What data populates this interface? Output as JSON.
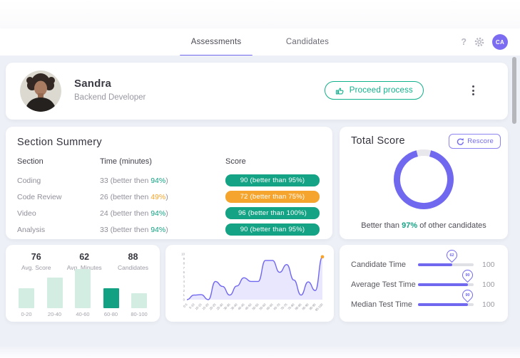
{
  "colors": {
    "accent_purple": "#7168f0",
    "green": "#14a385",
    "orange": "#f5a52e",
    "teal_button": "#10b08c"
  },
  "nav": {
    "tabs": [
      {
        "label": "Assessments"
      },
      {
        "label": "Candidates"
      }
    ],
    "help_glyph": "?",
    "settings_icon": "gear-icon",
    "avatar_initials": "CA"
  },
  "profile": {
    "name": "Sandra",
    "role": "Backend Developer",
    "proceed_button_label": "Proceed process"
  },
  "section_summary": {
    "title": "Section Summery",
    "columns": {
      "section": "Section",
      "time": "Time (minutes)",
      "score": "Score"
    },
    "rows": [
      {
        "section": "Coding",
        "time_prefix": "33 (better then ",
        "time_pct": "94%",
        "time_close": ")",
        "time_pct_color": "#14a385",
        "score_text": "90  (better than 95%)",
        "score_bg": "#14a385"
      },
      {
        "section": "Code Review",
        "time_prefix": "26 (better then ",
        "time_pct": "49%",
        "time_close": ")",
        "time_pct_color": "#f5a52e",
        "score_text": "72  (better than 75%)",
        "score_bg": "#f5a52e"
      },
      {
        "section": "Video",
        "time_prefix": "24 (better then ",
        "time_pct": "94%",
        "time_close": ")",
        "time_pct_color": "#14a385",
        "score_text": "96  (better than 100%)",
        "score_bg": "#14a385"
      },
      {
        "section": "Analysis",
        "time_prefix": "33 (better then ",
        "time_pct": "94%",
        "time_close": ")",
        "time_pct_color": "#14a385",
        "score_text": "90  (better than 95%)",
        "score_bg": "#14a385"
      }
    ]
  },
  "total_score": {
    "title": "Total Score",
    "rescore_label": "Rescore",
    "value": "92",
    "percent": 92,
    "ring_color": "#7168f0",
    "ring_bg": "#e8e8ec",
    "caption_prefix": "Better than ",
    "caption_pct": "97%",
    "caption_suffix": " of other candidates"
  },
  "chart_data": [
    {
      "name": "score-distribution-bars",
      "type": "bar",
      "stats": [
        {
          "value": "76",
          "label": "Avg. Score"
        },
        {
          "value": "62",
          "label": "Avg. Minutes"
        },
        {
          "value": "88",
          "label": "Candidates"
        }
      ],
      "categories": [
        "0-20",
        "20-40",
        "40-60",
        "60-80",
        "80-100"
      ],
      "values": [
        25,
        39,
        50,
        25,
        19
      ],
      "ylim": [
        0,
        50
      ],
      "highlight_index": 3,
      "bar_color": "#d4ede2",
      "highlight_color": "#12a182",
      "grid": false,
      "legend": false
    },
    {
      "name": "score-trend-area",
      "type": "area",
      "x": [
        "0-5",
        "5-10",
        "10-15",
        "15-20",
        "20-25",
        "25-30",
        "30-35",
        "35-40",
        "40-45",
        "45-50",
        "50-55",
        "55-60",
        "60-65",
        "65-70",
        "70-75",
        "75-80",
        "80-85",
        "85-90",
        "90-95",
        "95-100"
      ],
      "values": [
        0,
        1,
        1.1,
        0,
        4,
        2.9,
        1,
        3,
        4.8,
        4,
        4,
        8.6,
        8.6,
        6,
        7.7,
        4.3,
        1,
        3.9,
        2,
        9.4
      ],
      "ylim": [
        0,
        10
      ],
      "ytick_step": 1,
      "line_color": "#7168f0",
      "fill_color": "rgba(113,104,240,0.16)",
      "endpoint": true,
      "endpoint_color": "#f5a52e",
      "grid": false,
      "legend": false
    },
    {
      "name": "time-sliders",
      "type": "slider-group",
      "rows": [
        {
          "label": "Candidate Time",
          "value": 62,
          "max": 100,
          "max_label": "100"
        },
        {
          "label": "Average Test Time",
          "value": 90,
          "max": 100,
          "max_label": "100"
        },
        {
          "label": "Median Test Time",
          "value": 90,
          "max": 100,
          "max_label": "100"
        }
      ],
      "track_color": "#dfdfe6",
      "fill_color": "#7168f0"
    }
  ]
}
